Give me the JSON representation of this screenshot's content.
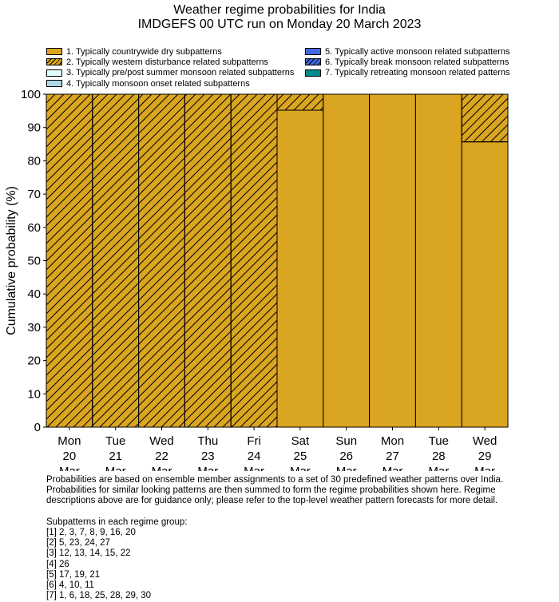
{
  "chart_data": {
    "type": "bar",
    "stacked": true,
    "title": "Weather regime probabilities for India",
    "subtitle": "IMDGEFS 00 UTC run on Monday 20 March 2023",
    "xlabel": "",
    "ylabel": "Cumulative probability (%)",
    "ylim": [
      0,
      100
    ],
    "yticks": [
      0,
      10,
      20,
      30,
      40,
      50,
      60,
      70,
      80,
      90,
      100
    ],
    "categories": [
      [
        "Mon",
        "20",
        "Mar"
      ],
      [
        "Tue",
        "21",
        "Mar"
      ],
      [
        "Wed",
        "22",
        "Mar"
      ],
      [
        "Thu",
        "23",
        "Mar"
      ],
      [
        "Fri",
        "24",
        "Mar"
      ],
      [
        "Sat",
        "25",
        "Mar"
      ],
      [
        "Sun",
        "26",
        "Mar"
      ],
      [
        "Mon",
        "27",
        "Mar"
      ],
      [
        "Tue",
        "28",
        "Mar"
      ],
      [
        "Wed",
        "29",
        "Mar"
      ]
    ],
    "legend_placement": "top",
    "series": [
      {
        "name": "1. Typically countrywide dry subpatterns",
        "color": "#DAA520",
        "hatch": false,
        "values": [
          0,
          0,
          0,
          0,
          0,
          95.2,
          100,
          100,
          100,
          85.7
        ]
      },
      {
        "name": "2. Typically western disturbance related subpatterns",
        "color": "#DAA520",
        "hatch": true,
        "values": [
          100,
          100,
          100,
          100,
          100,
          4.8,
          0,
          0,
          0,
          14.3
        ]
      },
      {
        "name": "3. Typically pre/post summer monsoon related subpatterns",
        "color": "#E0FFFF",
        "hatch": false,
        "values": [
          0,
          0,
          0,
          0,
          0,
          0,
          0,
          0,
          0,
          0
        ]
      },
      {
        "name": "4. Typically monsoon onset related subpatterns",
        "color": "#ADD8E6",
        "hatch": false,
        "values": [
          0,
          0,
          0,
          0,
          0,
          0,
          0,
          0,
          0,
          0
        ]
      },
      {
        "name": "5. Typically active monsoon related subpatterns",
        "color": "#4169E1",
        "hatch": false,
        "values": [
          0,
          0,
          0,
          0,
          0,
          0,
          0,
          0,
          0,
          0
        ]
      },
      {
        "name": "6. Typically break monsoon related subpatterns",
        "color": "#4169E1",
        "hatch": true,
        "values": [
          0,
          0,
          0,
          0,
          0,
          0,
          0,
          0,
          0,
          0
        ]
      },
      {
        "name": "7. Typically retreating monsoon related patterns",
        "color": "#008B8B",
        "hatch": false,
        "values": [
          0,
          0,
          0,
          0,
          0,
          0,
          0,
          0,
          0,
          0
        ]
      }
    ]
  },
  "notes": {
    "text": "Probabilities are based on ensemble member assignments to a set of 30 predefined weather patterns over India.\nProbabilities for similar looking patterns are then summed to form the regime probabilities shown here. Regime\ndescriptions above are for guidance only; please refer to the top-level weather pattern forecasts for more detail.\n\nSubpatterns in each regime group:\n[1] 2, 3, 7, 8, 9, 16, 20\n[2] 5, 23, 24, 27\n[3] 12, 13, 14, 15, 22\n[4] 26\n[5] 17, 19, 21\n[6] 4, 10, 11\n[7] 1, 6, 18, 25, 28, 29, 30"
  }
}
